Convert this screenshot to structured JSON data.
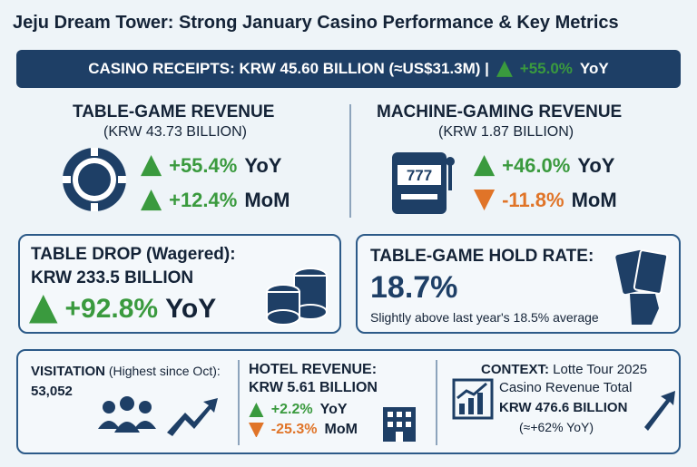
{
  "title": "Jeju Dream Tower: Strong January Casino Performance & Key Metrics",
  "banner": {
    "main": "CASINO RECEIPTS: KRW 45.60 BILLION (≈US$31.3M) |",
    "change": "+55.0%",
    "unit": "YoY",
    "direction": "up"
  },
  "table_game": {
    "title": "TABLE-GAME REVENUE",
    "subtitle": "(KRW 43.73 BILLION)",
    "metrics": [
      {
        "change": "+55.4%",
        "unit": "YoY",
        "direction": "up"
      },
      {
        "change": "+12.4%",
        "unit": "MoM",
        "direction": "up"
      }
    ]
  },
  "machine_gaming": {
    "title": "MACHINE-GAMING REVENUE",
    "subtitle": "(KRW 1.87 BILLION)",
    "metrics": [
      {
        "change": "+46.0%",
        "unit": "YoY",
        "direction": "up"
      },
      {
        "change": "-11.8%",
        "unit": "MoM",
        "direction": "down"
      }
    ]
  },
  "table_drop": {
    "title": "TABLE DROP (Wagered):",
    "amount": "KRW 233.5 BILLION",
    "metrics": [
      {
        "change": "+92.8%",
        "unit": "YoY",
        "direction": "up"
      }
    ]
  },
  "hold_rate": {
    "title": "TABLE-GAME HOLD RATE:",
    "value": "18.7%",
    "note": "Slightly above last year's 18.5% average"
  },
  "visitation": {
    "label": "VISITATION",
    "note": "(Highest since Oct):",
    "value": "53,052"
  },
  "hotel": {
    "title": "HOTEL REVENUE:",
    "amount": "KRW 5.61 BILLION",
    "metrics": [
      {
        "change": "+2.2%",
        "unit": "YoY",
        "direction": "up"
      },
      {
        "change": "-25.3%",
        "unit": "MoM",
        "direction": "down"
      }
    ]
  },
  "context": {
    "label": "CONTEXT:",
    "source": "Lotte Tour 2025",
    "line2": "Casino Revenue Total",
    "amount": "KRW 476.6 BILLION",
    "note": "(≈+62% YoY)"
  }
}
